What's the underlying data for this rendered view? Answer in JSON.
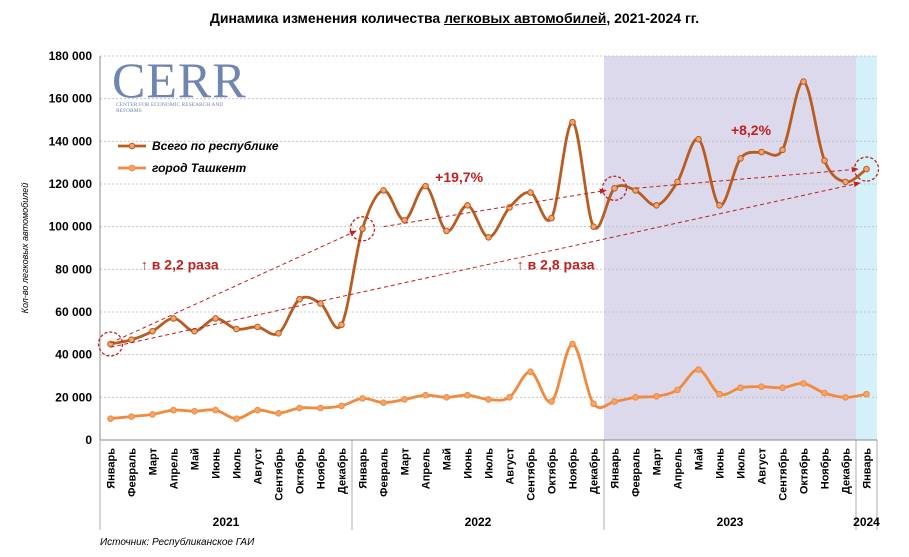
{
  "title": {
    "pre": "Динамика изменения количества ",
    "underlined": "легковых автомобилей",
    "post": ", 2021-2024 гг."
  },
  "source": "Источник: Республиканское ГАИ",
  "logo": {
    "letters": "CERR",
    "tagline": "Center for Economic Research and Reforms"
  },
  "chart_data": {
    "type": "line",
    "ylabel": "Кол-во легковых автомобилей",
    "ylim": [
      0,
      180000
    ],
    "yticks": [
      0,
      20000,
      40000,
      60000,
      80000,
      100000,
      120000,
      140000,
      160000,
      180000
    ],
    "ytick_labels": [
      "0",
      "20 000",
      "40 000",
      "60 000",
      "80 000",
      "100 000",
      "120 000",
      "140 000",
      "160 000",
      "180 000"
    ],
    "grid": true,
    "legend_position": "top-left",
    "categories": [
      "Январь",
      "Февраль",
      "Март",
      "Апрель",
      "Май",
      "Июнь",
      "Июль",
      "Август",
      "Сентябрь",
      "Октябрь",
      "Ноябрь",
      "Декабрь",
      "Январь",
      "Февраль",
      "Март",
      "Апрель",
      "Май",
      "Июнь",
      "Июль",
      "Август",
      "Сентябрь",
      "Октябрь",
      "Ноябрь",
      "Декабрь",
      "Январь",
      "Февраль",
      "Март",
      "Апрель",
      "Май",
      "Июнь",
      "Июль",
      "Август",
      "Сентябрь",
      "Октябрь",
      "Ноябрь",
      "Декабрь",
      "Январь"
    ],
    "years": [
      {
        "label": "2021",
        "start": 0,
        "count": 12
      },
      {
        "label": "2022",
        "start": 12,
        "count": 12
      },
      {
        "label": "2023",
        "start": 24,
        "count": 12
      },
      {
        "label": "2024",
        "start": 36,
        "count": 1
      }
    ],
    "shaded_regions": [
      {
        "start": 24,
        "end": 35,
        "color": "#dcd9ec"
      },
      {
        "start": 36,
        "end": 36,
        "color": "#d5f0f8"
      }
    ],
    "series": [
      {
        "name": "Всего по республике",
        "color": "#b85c22",
        "marker_fill": "#f5a56b",
        "values": [
          45000,
          47000,
          51000,
          57000,
          51000,
          57000,
          52000,
          53000,
          50000,
          66000,
          64000,
          54000,
          99000,
          117000,
          103000,
          119000,
          98000,
          110000,
          95000,
          109000,
          116000,
          104000,
          149000,
          100000,
          118000,
          117000,
          110000,
          121000,
          141000,
          110000,
          132000,
          135000,
          136000,
          168000,
          131000,
          121000,
          127000
        ]
      },
      {
        "name": "город Ташкент",
        "color": "#f08a3c",
        "marker_fill": "#f5a56b",
        "values": [
          10000,
          11000,
          12000,
          14000,
          13500,
          14000,
          10000,
          14000,
          12500,
          15000,
          15000,
          16000,
          19500,
          17500,
          19000,
          21000,
          20000,
          21000,
          19000,
          20000,
          32000,
          18000,
          45000,
          17000,
          18000,
          20000,
          20500,
          23500,
          33000,
          21500,
          24500,
          25000,
          24500,
          26500,
          22000,
          20000,
          21500
        ]
      }
    ],
    "annotations": [
      {
        "text": "↑ в 2,2 раза",
        "x": 3.3,
        "y": 80000
      },
      {
        "text": "↑ в 2,8 раза",
        "x": 21.2,
        "y": 80000
      },
      {
        "text": "+19,7%",
        "x": 16.6,
        "y": 121000
      },
      {
        "text": "+8,2%",
        "x": 30.5,
        "y": 143000
      }
    ],
    "highlight_points": [
      {
        "x": 0,
        "y": 45000
      },
      {
        "x": 12,
        "y": 99000
      },
      {
        "x": 24,
        "y": 118000
      },
      {
        "x": 36,
        "y": 127000
      }
    ],
    "trend_arrows": [
      {
        "from": [
          0,
          45500
        ],
        "to": [
          11.7,
          98000
        ]
      },
      {
        "from": [
          0,
          43500
        ],
        "to": [
          35.7,
          120500
        ]
      },
      {
        "from": [
          13,
          100000
        ],
        "to": [
          23.6,
          117000
        ]
      },
      {
        "from": [
          25,
          118000
        ],
        "to": [
          35.6,
          127000
        ]
      }
    ]
  }
}
